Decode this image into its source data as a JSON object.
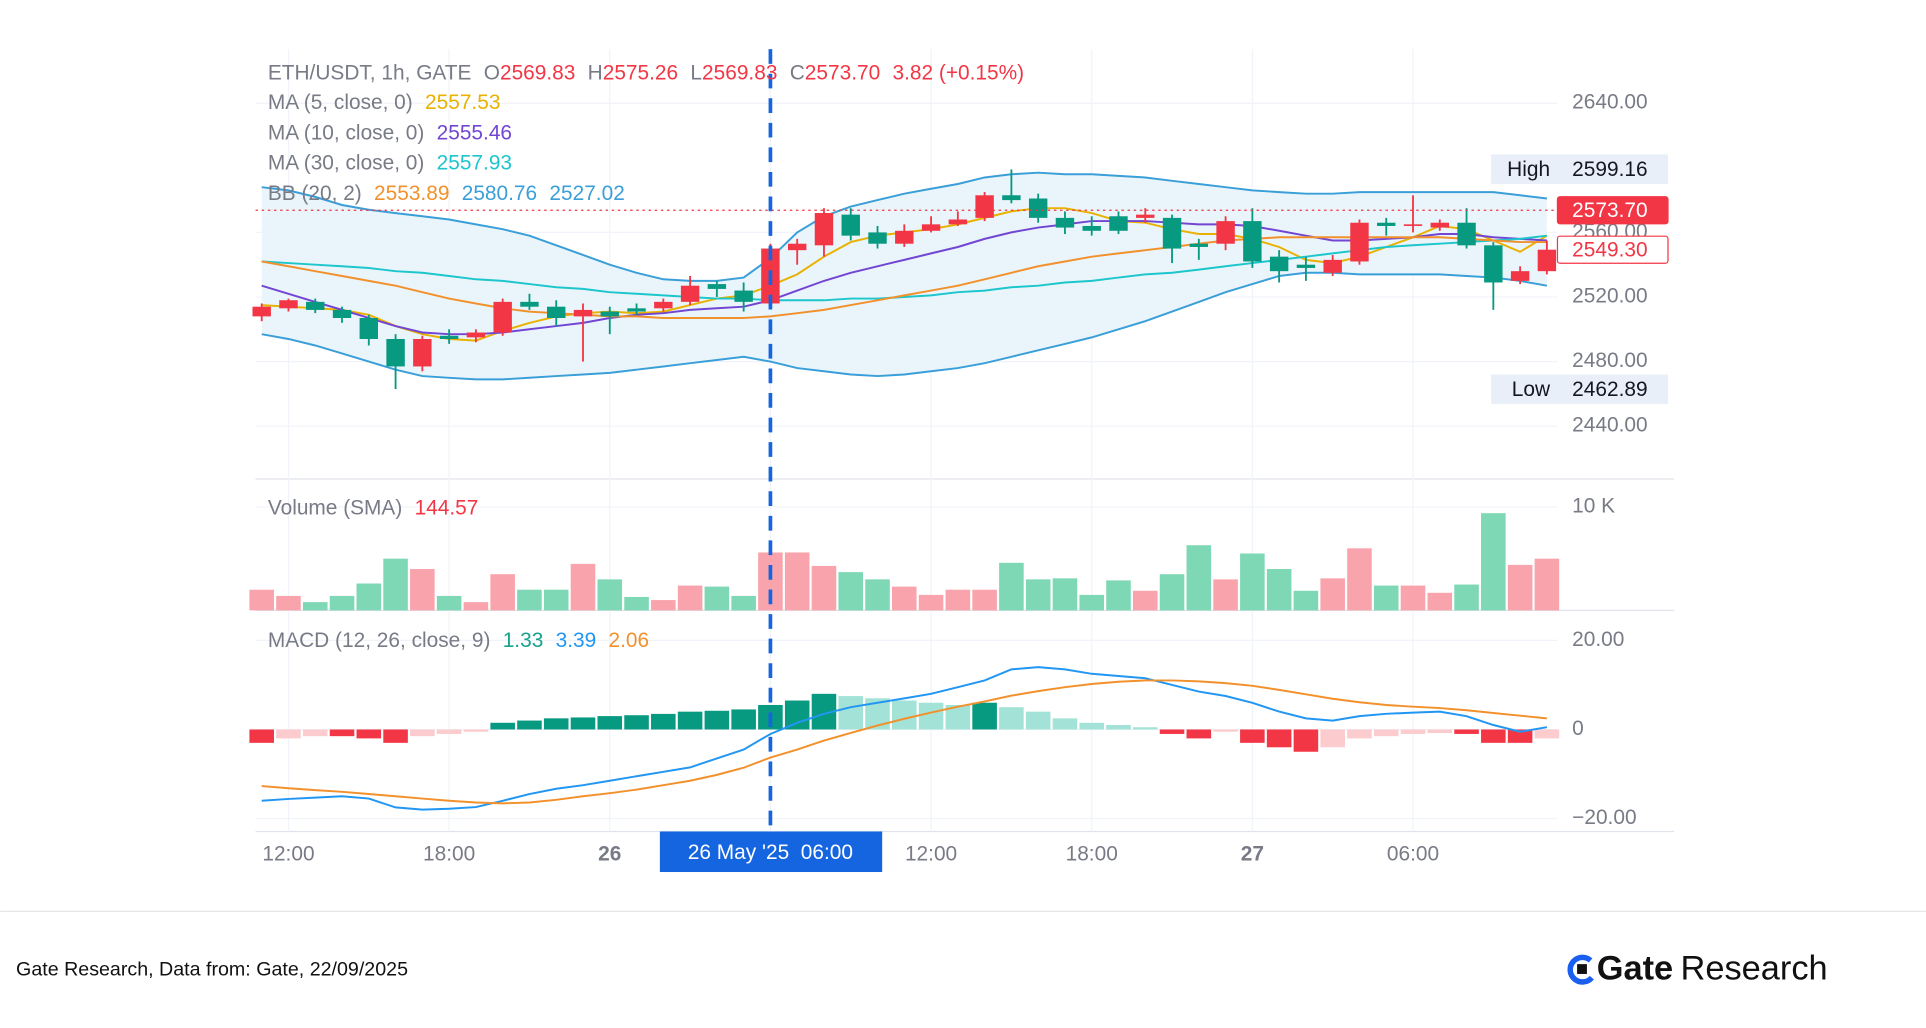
{
  "chart_data": [
    {
      "type": "candlestick",
      "title": "ETH/USDT, 1h, GATE",
      "ohlc": [
        {
          "name": "O",
          "value": "2569.83"
        },
        {
          "name": "H",
          "value": "2575.26"
        },
        {
          "name": "L",
          "value": "2569.83"
        },
        {
          "name": "C",
          "value": "2573.70"
        }
      ],
      "change": "3.82 (+0.15%)",
      "categories": [
        null,
        "12:00",
        null,
        null,
        null,
        null,
        null,
        "18:00",
        null,
        null,
        null,
        null,
        null,
        "26",
        null,
        null,
        null,
        null,
        null,
        "26 May '25  06:00",
        null,
        null,
        null,
        null,
        null,
        "12:00",
        null,
        null,
        null,
        null,
        null,
        "18:00",
        null,
        null,
        null,
        null,
        null,
        "27",
        null,
        null,
        null,
        null,
        null,
        "06:00",
        null,
        null,
        null,
        null,
        null
      ],
      "crosshair_index": 19,
      "crosshair_color": "#1565e0",
      "open": [
        2508,
        2513,
        2517,
        2512,
        2507,
        2494,
        2477,
        2496,
        2495,
        2498,
        2517,
        2514,
        2508,
        2511,
        2513,
        2513,
        2517,
        2528,
        2524,
        2516,
        2549,
        2552,
        2571,
        2560,
        2553,
        2561,
        2565,
        2569,
        2583,
        2581,
        2569,
        2564,
        2570,
        2569,
        2569,
        2553,
        2553,
        2567,
        2545,
        2540,
        2535,
        2542,
        2566,
        2564,
        2563,
        2566,
        2552,
        2530,
        2536
      ],
      "high": [
        2516,
        2519,
        2519,
        2514,
        2509,
        2497,
        2496,
        2500,
        2500,
        2519,
        2522,
        2518,
        2516,
        2514,
        2516,
        2519,
        2533,
        2530,
        2529,
        2553,
        2556,
        2575,
        2575,
        2564,
        2565,
        2570,
        2573,
        2585,
        2599,
        2584,
        2573,
        2570,
        2573,
        2575,
        2571,
        2556,
        2570,
        2575,
        2549,
        2545,
        2546,
        2568,
        2569,
        2583,
        2568,
        2575,
        2554,
        2539,
        2555
      ],
      "low": [
        2505,
        2511,
        2510,
        2504,
        2490,
        2463,
        2474,
        2491,
        2492,
        2496,
        2512,
        2502,
        2480,
        2497,
        2509,
        2511,
        2515,
        2520,
        2511,
        2513,
        2540,
        2545,
        2555,
        2550,
        2551,
        2560,
        2564,
        2567,
        2578,
        2566,
        2559,
        2558,
        2559,
        2566,
        2541,
        2543,
        2549,
        2538,
        2529,
        2530,
        2533,
        2540,
        2558,
        2560,
        2561,
        2550,
        2512,
        2528,
        2534
      ],
      "close": [
        2514,
        2518,
        2512,
        2507,
        2494,
        2477,
        2494,
        2494,
        2498,
        2517,
        2514,
        2507,
        2512,
        2508,
        2511,
        2517,
        2527,
        2525,
        2517,
        2550,
        2553,
        2572,
        2558,
        2553,
        2561,
        2565,
        2568,
        2583,
        2580,
        2569,
        2563,
        2561,
        2561,
        2571,
        2550,
        2551,
        2567,
        2542,
        2536,
        2538,
        2543,
        2566,
        2564,
        2565,
        2566,
        2552,
        2529,
        2536,
        2549.3
      ],
      "up_color": "#f23645",
      "down_color": "#089981",
      "indicators": [
        {
          "name": "MA (5, close, 0)",
          "series": [
            {
              "color": "#e9b100",
              "value": 2557.53,
              "values": [
                2515,
                2514,
                2513,
                2512,
                2509,
                2502,
                2497,
                2494,
                2493,
                2499,
                2504,
                2508,
                2510,
                2511,
                2510,
                2511,
                2515,
                2519,
                2521,
                2527,
                2534,
                2545,
                2554,
                2558,
                2560,
                2562,
                2565,
                2569,
                2573,
                2575,
                2575,
                2572,
                2567,
                2566,
                2562,
                2559,
                2559,
                2556,
                2551,
                2543,
                2541,
                2545,
                2551,
                2557,
                2564,
                2562,
                2555,
                2548,
                2558
              ]
            }
          ]
        },
        {
          "name": "MA (10, close, 0)",
          "series": [
            {
              "color": "#7246d3",
              "value": 2555.46,
              "values": [
                2527,
                2522,
                2517,
                2512,
                2507,
                2502,
                2498,
                2497,
                2497,
                2498,
                2500,
                2502,
                2504,
                2507,
                2509,
                2510,
                2512,
                2513,
                2514,
                2518,
                2524,
                2530,
                2535,
                2539,
                2543,
                2547,
                2551,
                2556,
                2560,
                2563,
                2565,
                2567,
                2567,
                2567,
                2566,
                2565,
                2565,
                2564,
                2561,
                2558,
                2555,
                2555,
                2556,
                2557,
                2559,
                2559,
                2557,
                2556,
                2555
              ]
            }
          ]
        },
        {
          "name": "MA (30, close, 0)",
          "series": [
            {
              "color": "#1cc6cc",
              "value": 2557.93,
              "values": [
                2542,
                2541,
                2540,
                2539,
                2538,
                2536,
                2535,
                2533,
                2531,
                2530,
                2528,
                2526,
                2525,
                2523,
                2522,
                2521,
                2520,
                2519,
                2519,
                2518,
                2518,
                2518,
                2519,
                2519,
                2520,
                2521,
                2523,
                2524,
                2526,
                2527,
                2529,
                2530,
                2532,
                2534,
                2535,
                2537,
                2539,
                2541,
                2543,
                2545,
                2547,
                2549,
                2551,
                2552,
                2553,
                2554,
                2555,
                2556,
                2558
              ]
            }
          ]
        },
        {
          "name": "BB (20, 2)",
          "fill": "#eaf5fb",
          "series": [
            {
              "color": "#f2912c",
              "value": 2553.89,
              "values": [
                2542,
                2539,
                2536,
                2533,
                2530,
                2527,
                2523,
                2519,
                2516,
                2513,
                2511,
                2510,
                2509,
                2508,
                2508,
                2507,
                2507,
                2507,
                2507,
                2508,
                2510,
                2512,
                2515,
                2518,
                2521,
                2524,
                2527,
                2531,
                2535,
                2539,
                2542,
                2545,
                2547,
                2549,
                2551,
                2553,
                2555,
                2556,
                2557,
                2557,
                2557,
                2557,
                2557,
                2557,
                2557,
                2556,
                2555,
                2554,
                2554
              ]
            },
            {
              "color": "#3a9fd8",
              "value": 2580.76,
              "values": [
                2588,
                2586,
                2582,
                2577,
                2574,
                2572,
                2570,
                2568,
                2565,
                2562,
                2558,
                2552,
                2546,
                2540,
                2535,
                2531,
                2530,
                2530,
                2532,
                2544,
                2560,
                2570,
                2576,
                2580,
                2584,
                2587,
                2590,
                2594,
                2596,
                2597,
                2596,
                2596,
                2595,
                2594,
                2592,
                2590,
                2588,
                2586,
                2585,
                2584,
                2584,
                2585,
                2585,
                2585,
                2585,
                2585,
                2585,
                2583,
                2581
              ]
            },
            {
              "color": "#3a9fd8",
              "value": 2527.02,
              "values": [
                2497,
                2494,
                2490,
                2485,
                2480,
                2475,
                2471,
                2470,
                2469,
                2469,
                2470,
                2471,
                2472,
                2473,
                2475,
                2477,
                2479,
                2481,
                2483,
                2480,
                2476,
                2474,
                2472,
                2471,
                2472,
                2474,
                2476,
                2479,
                2483,
                2487,
                2491,
                2495,
                2500,
                2505,
                2511,
                2517,
                2523,
                2528,
                2533,
                2535,
                2535,
                2534,
                2534,
                2534,
                2534,
                2533,
                2532,
                2530,
                2527
              ]
            }
          ]
        }
      ],
      "price_labels": [
        {
          "value": 2573.7,
          "label": "2573.70",
          "style": "filled",
          "color": "#f23645"
        },
        {
          "value": 2549.3,
          "label": "2549.30",
          "style": "outline",
          "color": "#f23645"
        }
      ],
      "extremes": [
        {
          "label": "High",
          "value": 2599.16
        },
        {
          "label": "Low",
          "value": 2462.89
        }
      ],
      "extreme_bg": "#e8eff8",
      "ylim": [
        2407.3,
        2673.5
      ],
      "yticks": [
        {
          "value": 2640,
          "label": "2640.00"
        },
        {
          "value": 2560,
          "label": "2560.00"
        },
        {
          "value": 2520,
          "label": "2520.00"
        },
        {
          "value": 2480,
          "label": "2480.00"
        },
        {
          "value": 2440,
          "label": "2440.00"
        }
      ],
      "grid": true
    },
    {
      "type": "bar",
      "title": "Volume (SMA)",
      "value": 144.57,
      "value_color": "#f23645",
      "values": [
        2000,
        1400,
        800,
        1400,
        2600,
        5000,
        4000,
        1400,
        800,
        3500,
        2000,
        2000,
        4500,
        3000,
        1300,
        1000,
        2400,
        2300,
        1400,
        5600,
        5600,
        4300,
        3700,
        3000,
        2300,
        1500,
        2000,
        2000,
        4600,
        3000,
        3100,
        1500,
        2900,
        1900,
        3500,
        6300,
        3000,
        5500,
        4000,
        1900,
        3100,
        6000,
        2400,
        2400,
        1700,
        2500,
        9400,
        4400,
        5000
      ],
      "up_color": "#f9a4ac",
      "down_color": "#7fd8b5",
      "ylim": [
        0,
        12700
      ],
      "yticks": [
        {
          "value": 10000,
          "label": "10 K"
        }
      ],
      "grid": true
    },
    {
      "type": "macd",
      "title": "MACD (12, 26, close, 9)",
      "series": [
        {
          "color": "#14a38b",
          "value": 1.33,
          "hist_colors": [
            "#089981",
            "#a3e2d6",
            "#f23645",
            "#fccbcd"
          ],
          "values": [
            -3,
            -2,
            -1.5,
            -1.5,
            -2,
            -3,
            -1.5,
            -1,
            -0.5,
            1.5,
            2,
            2.5,
            2.7,
            3,
            3.2,
            3.5,
            4,
            4.2,
            4.5,
            5.5,
            6.5,
            8,
            7.5,
            7,
            6.5,
            6,
            5.5,
            6,
            5,
            4,
            2.5,
            1.5,
            1,
            0.5,
            -1,
            -2,
            -0.5,
            -3,
            -4,
            -5,
            -4,
            -2,
            -1.5,
            -1,
            -0.8,
            -1,
            -3,
            -3,
            -2
          ]
        },
        {
          "color": "#2196f3",
          "value": 3.39,
          "values": [
            -16,
            -15.6,
            -15.3,
            -15,
            -15.5,
            -17.5,
            -18,
            -17.8,
            -17.4,
            -16,
            -14.5,
            -13.3,
            -12.5,
            -11.5,
            -10.5,
            -9.5,
            -8.5,
            -6.5,
            -4.5,
            -1,
            1.5,
            3.5,
            5,
            6,
            7,
            8,
            9.5,
            11,
            13.5,
            14,
            13.5,
            12.5,
            12,
            11.5,
            10,
            8.5,
            7.5,
            6,
            4,
            2.5,
            2,
            3,
            3.5,
            3.8,
            4,
            3,
            1,
            -0.5,
            0.5
          ]
        },
        {
          "color": "#f2912c",
          "value": 2.06,
          "values": [
            -12.7,
            -13.2,
            -13.6,
            -14,
            -14.5,
            -15,
            -15.5,
            -16,
            -16.4,
            -16.6,
            -16.4,
            -15.8,
            -15,
            -14.3,
            -13.5,
            -12.5,
            -11.5,
            -10.2,
            -8.6,
            -6.3,
            -4.5,
            -2.5,
            -0.8,
            0.9,
            2.4,
            3.8,
            5.1,
            6.3,
            7.6,
            8.6,
            9.5,
            10.2,
            10.7,
            11,
            11,
            10.8,
            10.4,
            9.8,
            8.9,
            7.9,
            6.9,
            6.1,
            5.5,
            5.1,
            4.8,
            4.3,
            3.7,
            3.1,
            2.5
          ]
        }
      ],
      "ylim": [
        -22.9,
        25.9
      ],
      "yticks": [
        {
          "value": 20,
          "label": "20.00"
        },
        0,
        {
          "value": -20,
          "label": "−20.00"
        }
      ],
      "grid": true
    }
  ],
  "footer": {
    "source": "Gate Research, Data from: Gate, 22/09/2025",
    "logo": {
      "brand": "Gate",
      "suffix": "Research"
    }
  }
}
